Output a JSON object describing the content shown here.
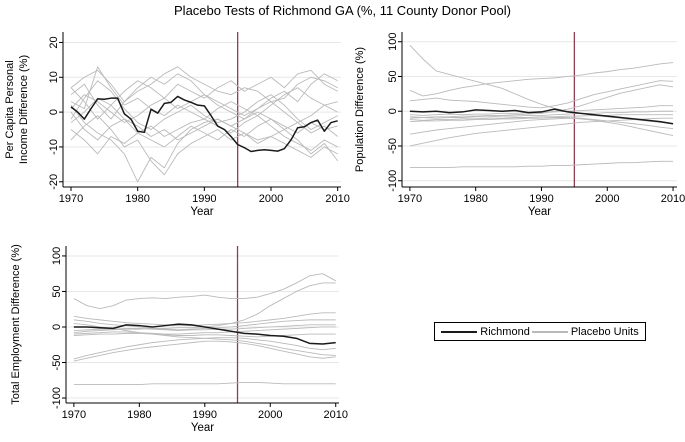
{
  "title": "Placebo Tests of Richmond GA (%, 11 County Donor Pool)",
  "colors": {
    "richmond": "#1a1a1a",
    "placebo": "#bababa",
    "treatment_line": "#8e3e52",
    "grid": "#e7e7e7",
    "axis": "#000000"
  },
  "legend": {
    "items": [
      {
        "label": "Richmond",
        "color_key": "richmond"
      },
      {
        "label": "Placebo Units",
        "color_key": "placebo"
      }
    ]
  },
  "treatment_year": 1995,
  "chart_data": [
    {
      "type": "line",
      "id": "per-capita-income",
      "ylabel_lines": [
        "Per Capita Personal",
        "Income Difference (%)"
      ],
      "xlabel": "Year",
      "xlim": [
        1968.8,
        2010.5
      ],
      "ylim": [
        -21.5,
        23
      ],
      "xticks": [
        1970,
        1980,
        1990,
        2000,
        2010
      ],
      "yticks": [
        -20,
        -10,
        0,
        10,
        20
      ],
      "vline_x": 1995,
      "grid": true,
      "series": [
        {
          "name": "Richmond",
          "role": "treated",
          "x0": 1970,
          "dx": 1,
          "y": [
            1.5,
            0,
            -2,
            1,
            3.8,
            3.7,
            4,
            4,
            -0.5,
            -2,
            -5.5,
            -5.8,
            0.8,
            -0.3,
            2.5,
            2.8,
            4.5,
            3.5,
            2.8,
            2,
            1.8,
            -1,
            -4,
            -5,
            -7,
            -9.3,
            -10.2,
            -11.3,
            -11,
            -10.8,
            -11,
            -11.2,
            -10.5,
            -8,
            -4.5,
            -4.2,
            -3,
            -2.3,
            -5.5,
            -3,
            -2.5
          ]
        },
        {
          "role": "placebo",
          "x0": 1970,
          "dx": 2,
          "y": [
            7,
            10,
            12,
            8,
            3,
            6,
            8,
            11,
            13,
            10,
            8,
            6,
            5,
            7,
            6,
            3,
            4,
            8,
            10,
            9,
            7
          ]
        },
        {
          "role": "placebo",
          "x0": 1970,
          "dx": 2,
          "y": [
            2,
            -3,
            -6,
            -8,
            -12,
            -20,
            -13,
            -16,
            -9,
            -5,
            -3,
            -2,
            -4,
            -6,
            -8,
            -7,
            -9,
            -11,
            -13,
            -10,
            -12
          ]
        },
        {
          "role": "placebo",
          "x0": 1970,
          "dx": 2,
          "y": [
            5,
            8,
            2,
            -2,
            3,
            7,
            10,
            8,
            11,
            9,
            5,
            2,
            0,
            -2,
            1,
            4,
            6,
            3,
            8,
            11,
            9
          ]
        },
        {
          "role": "placebo",
          "x0": 1970,
          "dx": 2,
          "y": [
            -2,
            4,
            9,
            6,
            1,
            -3,
            -5,
            -2,
            0,
            2,
            -1,
            -3,
            -2,
            0,
            3,
            5,
            2,
            -2,
            -5,
            -3,
            -1
          ]
        },
        {
          "role": "placebo",
          "x0": 1970,
          "dx": 2,
          "y": [
            0,
            -5,
            -8,
            -4,
            -2,
            -6,
            -4,
            -7,
            -5,
            -3,
            -2,
            -4,
            -6,
            -3,
            -1,
            -4,
            -7,
            -9,
            -11,
            -8,
            -10
          ]
        },
        {
          "role": "placebo",
          "x0": 1970,
          "dx": 2,
          "y": [
            3,
            1,
            13,
            7,
            2,
            4,
            1,
            -1,
            2,
            0,
            -2,
            1,
            3,
            1,
            -1,
            2,
            5,
            7,
            4,
            2,
            3
          ]
        },
        {
          "role": "placebo",
          "x0": 1970,
          "dx": 2,
          "y": [
            -5,
            -8,
            -12,
            -7,
            -9,
            -6,
            -8,
            -10,
            -7,
            -4,
            -6,
            -8,
            -5,
            -7,
            -4,
            -2,
            -5,
            -8,
            -12,
            -9,
            -14
          ]
        },
        {
          "role": "placebo",
          "x0": 1970,
          "dx": 2,
          "y": [
            7,
            3,
            -2,
            2,
            6,
            9,
            7,
            4,
            8,
            6,
            4,
            7,
            9,
            6,
            8,
            10,
            7,
            11,
            12,
            8,
            6
          ]
        },
        {
          "role": "placebo",
          "x0": 1970,
          "dx": 2,
          "y": [
            -8,
            -4,
            -1,
            -5,
            -10,
            -8,
            -14,
            -18,
            -12,
            -9,
            -7,
            -5,
            -8,
            -6,
            -9,
            -7,
            -5,
            -3,
            -6,
            -4,
            -7
          ]
        },
        {
          "role": "placebo",
          "x0": 1970,
          "dx": 2,
          "y": [
            1,
            5,
            3,
            0,
            -3,
            -1,
            2,
            4,
            1,
            3,
            5,
            3,
            1,
            -1,
            1,
            3,
            0,
            -3,
            -1,
            2,
            0
          ]
        },
        {
          "role": "placebo",
          "x0": 1970,
          "dx": 2,
          "y": [
            -3,
            0,
            4,
            2,
            -2,
            -4,
            -7,
            -5,
            -8,
            -6,
            -4,
            -2,
            -4,
            -2,
            0,
            -2,
            -4,
            -6,
            -3,
            -5,
            -4
          ]
        }
      ]
    },
    {
      "type": "line",
      "id": "population",
      "ylabel_lines": [
        "Population Difference (%)"
      ],
      "xlabel": "Year",
      "xlim": [
        1968.8,
        2010.6
      ],
      "ylim": [
        -109,
        114
      ],
      "xticks": [
        1970,
        1980,
        1990,
        2000,
        2010
      ],
      "yticks": [
        -100,
        -50,
        0,
        50,
        100
      ],
      "vline_x": 1995,
      "grid": true,
      "series": [
        {
          "name": "Richmond",
          "role": "treated",
          "x0": 1970,
          "dx": 2,
          "y": [
            0,
            -1,
            0,
            -2,
            -1,
            2,
            1,
            0,
            1,
            -2,
            -1,
            3,
            -1,
            -3,
            -5,
            -7,
            -9,
            -11,
            -13,
            -15,
            -18
          ]
        },
        {
          "role": "placebo",
          "x0": 1970,
          "dx": 2,
          "y": [
            95,
            75,
            58,
            53,
            48,
            43,
            38,
            33,
            25,
            17,
            10,
            4,
            0,
            -3,
            -6,
            -8,
            -10,
            -12,
            -14,
            -16,
            -18
          ]
        },
        {
          "role": "placebo",
          "x0": 1970,
          "dx": 2,
          "y": [
            30,
            22,
            25,
            30,
            34,
            37,
            40,
            42,
            44,
            46,
            47,
            48,
            50,
            52,
            55,
            57,
            60,
            62,
            65,
            68,
            70
          ]
        },
        {
          "role": "placebo",
          "x0": 1970,
          "dx": 2,
          "y": [
            15,
            17,
            19,
            16,
            15,
            14,
            12,
            10,
            8,
            6,
            5,
            8,
            12,
            18,
            24,
            28,
            32,
            36,
            40,
            44,
            43
          ]
        },
        {
          "role": "placebo",
          "x0": 1970,
          "dx": 2,
          "y": [
            -10,
            -9,
            -8,
            -8,
            -7,
            -7,
            -6,
            -6,
            -5,
            -4,
            -3,
            0,
            3,
            8,
            14,
            20,
            26,
            30,
            34,
            38,
            35
          ]
        },
        {
          "role": "placebo",
          "x0": 1970,
          "dx": 2,
          "y": [
            -5,
            -6,
            -5,
            -4,
            -5,
            -4,
            -4,
            -3,
            -3,
            -2,
            -2,
            -1,
            0,
            1,
            2,
            3,
            4,
            5,
            6,
            8,
            8
          ]
        },
        {
          "role": "placebo",
          "x0": 1970,
          "dx": 2,
          "y": [
            -8,
            -9,
            -10,
            -9,
            -9,
            -8,
            -8,
            -7,
            -7,
            -6,
            -6,
            -5,
            -4,
            -3,
            -3,
            -2,
            -2,
            -1,
            -1,
            0,
            0
          ]
        },
        {
          "role": "placebo",
          "x0": 1970,
          "dx": 2,
          "y": [
            -12,
            -13,
            -12,
            -12,
            -11,
            -11,
            -10,
            -10,
            -9,
            -9,
            -8,
            -8,
            -7,
            -7,
            -6,
            -6,
            -5,
            -5,
            -5,
            -5,
            -5
          ]
        },
        {
          "role": "placebo",
          "x0": 1970,
          "dx": 2,
          "y": [
            -15,
            -14,
            -14,
            -13,
            -13,
            -12,
            -12,
            -11,
            -11,
            -10,
            -10,
            -9,
            -9,
            -10,
            -12,
            -14,
            -16,
            -18,
            -20,
            -23,
            -25
          ]
        },
        {
          "role": "placebo",
          "x0": 1970,
          "dx": 2,
          "y": [
            -33,
            -30,
            -27,
            -25,
            -23,
            -21,
            -19,
            -17,
            -15,
            -13,
            -12,
            -11,
            -10,
            -11,
            -13,
            -16,
            -19,
            -23,
            -27,
            -31,
            -35
          ]
        },
        {
          "role": "placebo",
          "x0": 1970,
          "dx": 2,
          "y": [
            -50,
            -46,
            -42,
            -38,
            -35,
            -32,
            -30,
            -28,
            -26,
            -24,
            -22,
            -20,
            -18,
            -16,
            -15,
            -14,
            -13,
            -12,
            -11,
            -10,
            -10
          ]
        },
        {
          "role": "placebo",
          "x0": 1970,
          "dx": 2,
          "y": [
            -81,
            -81,
            -81,
            -81,
            -80,
            -80,
            -80,
            -80,
            -80,
            -79,
            -79,
            -78,
            -78,
            -77,
            -76,
            -75,
            -74,
            -74,
            -73,
            -72,
            -72
          ]
        }
      ]
    },
    {
      "type": "line",
      "id": "total-employment",
      "ylabel_lines": [
        "Total Employment Difference (%)"
      ],
      "xlabel": "Year",
      "xlim": [
        1968.8,
        2010.5
      ],
      "ylim": [
        -107,
        114
      ],
      "xticks": [
        1970,
        1980,
        1990,
        2000,
        2010
      ],
      "yticks": [
        -100,
        -50,
        0,
        50,
        100
      ],
      "vline_x": 1995,
      "grid": true,
      "series": [
        {
          "name": "Richmond",
          "role": "treated",
          "x0": 1970,
          "dx": 2,
          "y": [
            0,
            0,
            -1,
            -2,
            3,
            2,
            0,
            2,
            4,
            3,
            0,
            -3,
            -6,
            -9,
            -10,
            -12,
            -13,
            -16,
            -23,
            -24,
            -22
          ]
        },
        {
          "role": "placebo",
          "x0": 1970,
          "dx": 2,
          "y": [
            40,
            30,
            26,
            30,
            38,
            40,
            41,
            40,
            42,
            43,
            45,
            42,
            40,
            40,
            42,
            47,
            53,
            62,
            72,
            75,
            65
          ]
        },
        {
          "role": "placebo",
          "x0": 1970,
          "dx": 2,
          "y": [
            -8,
            -6,
            -5,
            -4,
            -3,
            -3,
            -2,
            -2,
            -1,
            -1,
            0,
            2,
            5,
            10,
            18,
            30,
            40,
            50,
            58,
            62,
            62
          ]
        },
        {
          "role": "placebo",
          "x0": 1970,
          "dx": 2,
          "y": [
            15,
            12,
            10,
            8,
            6,
            5,
            4,
            3,
            2,
            2,
            3,
            4,
            5,
            6,
            8,
            10,
            12,
            15,
            18,
            20,
            20
          ]
        },
        {
          "role": "placebo",
          "x0": 1970,
          "dx": 2,
          "y": [
            10,
            8,
            5,
            3,
            2,
            0,
            -2,
            -3,
            -4,
            -3,
            -2,
            -1,
            0,
            2,
            4,
            6,
            8,
            9,
            10,
            10,
            10
          ]
        },
        {
          "role": "placebo",
          "x0": 1970,
          "dx": 2,
          "y": [
            -5,
            -4,
            -3,
            -3,
            -2,
            -2,
            -3,
            -4,
            -5,
            -4,
            -4,
            -3,
            -3,
            -2,
            -1,
            0,
            1,
            2,
            3,
            3,
            3
          ]
        },
        {
          "role": "placebo",
          "x0": 1970,
          "dx": 2,
          "y": [
            -10,
            -9,
            -8,
            -7,
            -7,
            -8,
            -9,
            -10,
            -10,
            -9,
            -8,
            -8,
            -7,
            -6,
            -5,
            -4,
            -3,
            -2,
            -1,
            0,
            0
          ]
        },
        {
          "role": "placebo",
          "x0": 1970,
          "dx": 2,
          "y": [
            -12,
            -11,
            -10,
            -10,
            -9,
            -9,
            -10,
            -11,
            -12,
            -12,
            -11,
            -11,
            -12,
            -13,
            -14,
            -13,
            -12,
            -11,
            -10,
            -10,
            -10
          ]
        },
        {
          "role": "placebo",
          "x0": 1970,
          "dx": 2,
          "y": [
            -45,
            -40,
            -36,
            -32,
            -28,
            -25,
            -22,
            -20,
            -18,
            -17,
            -16,
            -15,
            -15,
            -16,
            -18,
            -20,
            -23,
            -26,
            -30,
            -32,
            -30
          ]
        },
        {
          "role": "placebo",
          "x0": 1970,
          "dx": 2,
          "y": [
            -48,
            -44,
            -40,
            -36,
            -33,
            -30,
            -28,
            -26,
            -24,
            -22,
            -20,
            -20,
            -21,
            -23,
            -26,
            -30,
            -34,
            -38,
            -42,
            -44,
            -42
          ]
        },
        {
          "role": "placebo",
          "x0": 1970,
          "dx": 2,
          "y": [
            5,
            3,
            0,
            -2,
            -5,
            -8,
            -10,
            -12,
            -14,
            -15,
            -16,
            -17,
            -18,
            -20,
            -23,
            -26,
            -30,
            -33,
            -36,
            -39,
            -40
          ]
        },
        {
          "role": "placebo",
          "x0": 1970,
          "dx": 2,
          "y": [
            -81,
            -81,
            -81,
            -81,
            -81,
            -81,
            -80,
            -80,
            -80,
            -80,
            -80,
            -80,
            -79,
            -78,
            -78,
            -79,
            -80,
            -80,
            -80,
            -80,
            -80
          ]
        }
      ]
    }
  ]
}
